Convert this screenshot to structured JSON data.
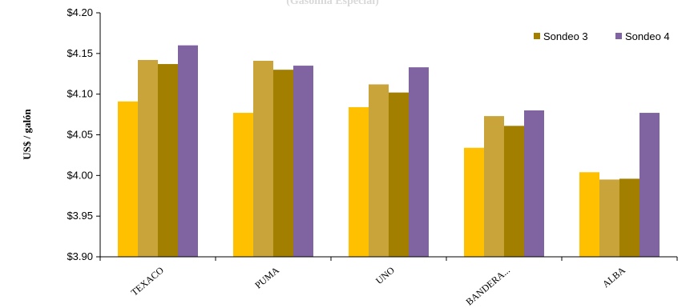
{
  "chart_data": {
    "type": "bar",
    "title": "(Gasolina Especial)",
    "ylabel": "US$ / galón",
    "xlabel": "",
    "ylim": [
      3.9,
      4.2
    ],
    "yticks": [
      "$3.90",
      "$3.95",
      "$4.00",
      "$4.05",
      "$4.10",
      "$4.15",
      "$4.20"
    ],
    "categories": [
      "TEXACO",
      "PUMA",
      "UNO",
      "BANDERA...",
      "ALBA"
    ],
    "series": [
      {
        "values": [
          4.091,
          4.077,
          4.084,
          4.034,
          4.004
        ],
        "color": "#ffc000"
      },
      {
        "values": [
          4.142,
          4.141,
          4.112,
          4.073,
          3.995
        ],
        "color": "#c9a43a"
      },
      {
        "name": "Sondeo 3",
        "values": [
          4.137,
          4.13,
          4.102,
          4.061,
          3.996
        ],
        "color": "#a37f00"
      },
      {
        "name": "Sondeo 4",
        "values": [
          4.16,
          4.135,
          4.133,
          4.08,
          4.077
        ],
        "color": "#8064a2"
      }
    ],
    "legend": {
      "position": "top-right"
    },
    "grid": false
  }
}
